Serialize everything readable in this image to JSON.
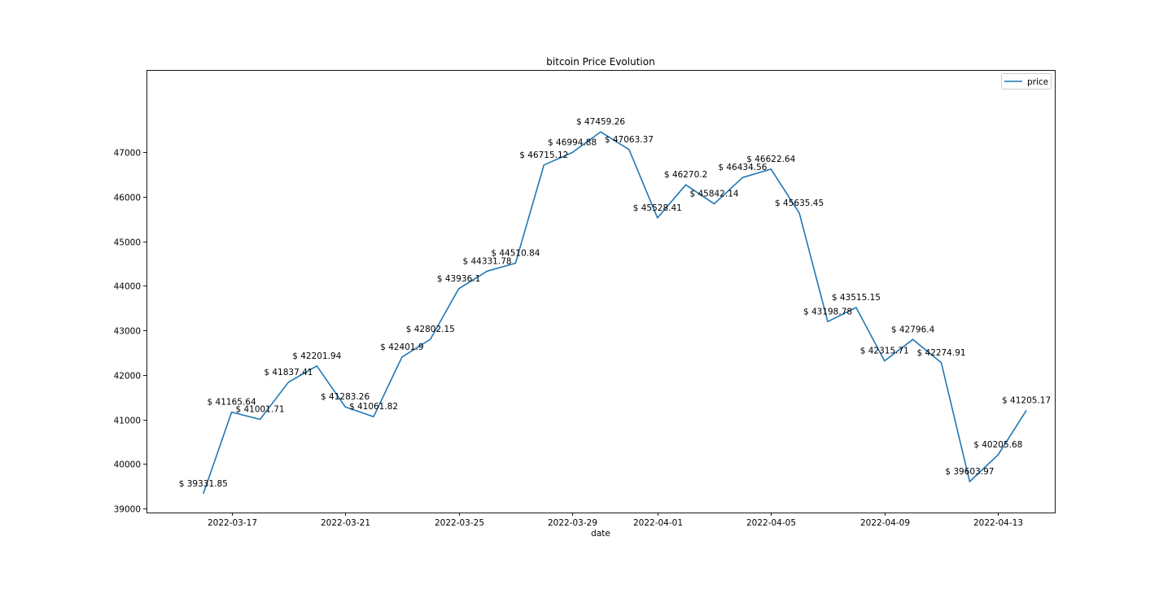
{
  "chart_data": {
    "type": "line",
    "title": "bitcoin Price Evolution",
    "xlabel": "date",
    "ylabel": "",
    "legend_position": "top-right",
    "grid": false,
    "series": [
      {
        "name": "price",
        "color": "#1f77b4",
        "points": [
          {
            "date": "2022-03-15",
            "value": 39331.85,
            "label": "$ 39331.85"
          },
          {
            "date": "2022-03-16",
            "value": 41165.64,
            "label": "$ 41165.64"
          },
          {
            "date": "2022-03-17",
            "value": 41001.71,
            "label": "$ 41001.71"
          },
          {
            "date": "2022-03-18",
            "value": 41837.41,
            "label": "$ 41837.41"
          },
          {
            "date": "2022-03-19",
            "value": 42201.94,
            "label": "$ 42201.94"
          },
          {
            "date": "2022-03-20",
            "value": 41283.26,
            "label": "$ 41283.26"
          },
          {
            "date": "2022-03-21",
            "value": 41061.82,
            "label": "$ 41061.82"
          },
          {
            "date": "2022-03-22",
            "value": 42401.9,
            "label": "$ 42401.9"
          },
          {
            "date": "2022-03-23",
            "value": 42802.15,
            "label": "$ 42802.15"
          },
          {
            "date": "2022-03-24",
            "value": 43936.1,
            "label": "$ 43936.1"
          },
          {
            "date": "2022-03-25",
            "value": 44331.78,
            "label": "$ 44331.78"
          },
          {
            "date": "2022-03-26",
            "value": 44510.84,
            "label": "$ 44510.84"
          },
          {
            "date": "2022-03-27",
            "value": 46715.12,
            "label": "$ 46715.12"
          },
          {
            "date": "2022-03-28",
            "value": 46994.88,
            "label": "$ 46994.88"
          },
          {
            "date": "2022-03-29",
            "value": 47459.26,
            "label": "$ 47459.26"
          },
          {
            "date": "2022-03-30",
            "value": 47063.37,
            "label": "$ 47063.37"
          },
          {
            "date": "2022-03-31",
            "value": 45528.41,
            "label": "$ 45528.41"
          },
          {
            "date": "2022-04-01",
            "value": 46270.2,
            "label": "$ 46270.2"
          },
          {
            "date": "2022-04-02",
            "value": 45842.14,
            "label": "$ 45842.14"
          },
          {
            "date": "2022-04-03",
            "value": 46434.56,
            "label": "$ 46434.56"
          },
          {
            "date": "2022-04-04",
            "value": 46622.64,
            "label": "$ 46622.64"
          },
          {
            "date": "2022-04-05",
            "value": 45635.45,
            "label": "$ 45635.45"
          },
          {
            "date": "2022-04-06",
            "value": 43198.78,
            "label": "$ 43198.78"
          },
          {
            "date": "2022-04-07",
            "value": 43515.15,
            "label": "$ 43515.15"
          },
          {
            "date": "2022-04-08",
            "value": 42315.71,
            "label": "$ 42315.71"
          },
          {
            "date": "2022-04-09",
            "value": 42796.4,
            "label": "$ 42796.4"
          },
          {
            "date": "2022-04-10",
            "value": 42274.91,
            "label": "$ 42274.91"
          },
          {
            "date": "2022-04-11",
            "value": 39603.97,
            "label": "$ 39603.97"
          },
          {
            "date": "2022-04-12",
            "value": 40205.68,
            "label": "$ 40205.68"
          },
          {
            "date": "2022-04-13",
            "value": 41205.17,
            "label": "$ 41205.17"
          }
        ]
      }
    ],
    "x_ticks": [
      {
        "date": "2022-03-16",
        "label": "2022-03-17"
      },
      {
        "date": "2022-03-20",
        "label": "2022-03-21"
      },
      {
        "date": "2022-03-24",
        "label": "2022-03-25"
      },
      {
        "date": "2022-03-28",
        "label": "2022-03-29"
      },
      {
        "date": "2022-03-31",
        "label": "2022-04-01"
      },
      {
        "date": "2022-04-04",
        "label": "2022-04-05"
      },
      {
        "date": "2022-04-08",
        "label": "2022-04-09"
      },
      {
        "date": "2022-04-12",
        "label": "2022-04-13"
      }
    ],
    "y_ticks": [
      39000,
      40000,
      41000,
      42000,
      43000,
      44000,
      45000,
      46000,
      47000
    ],
    "xlim": [
      "2022-03-13",
      "2022-04-14"
    ],
    "ylim": [
      38910,
      48850
    ]
  }
}
